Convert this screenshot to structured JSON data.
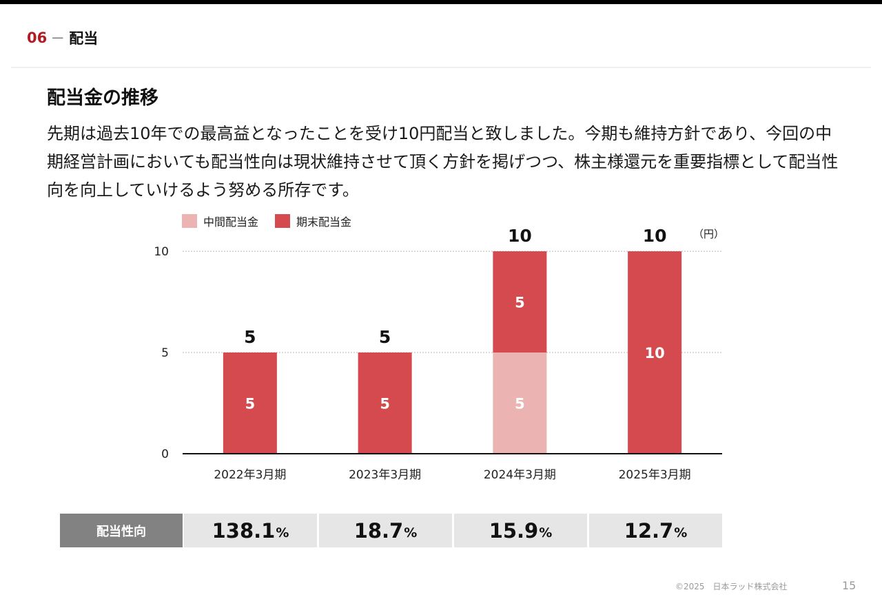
{
  "section": {
    "number": "06",
    "dash": "－",
    "title": "配当"
  },
  "page_title": "配当金の推移",
  "body_text": "先期は過去10年での最高益となったことを受け10円配当と致しました。今期も維持方針であり、今回の中期経営計画においても配当性向は現状維持させて頂く方針を掲げつつ、株主様還元を重要指標として配当性向を向上していけるよう努める所存です。",
  "legend": [
    {
      "label": "中間配当金",
      "color": "#ebb3b2"
    },
    {
      "label": "期末配当金",
      "color": "#d44a4e"
    }
  ],
  "unit": "（円）",
  "chart_data": {
    "type": "bar",
    "stacked": true,
    "categories": [
      "2022年3月期",
      "2023年3月期",
      "2024年3月期",
      "2025年3月期"
    ],
    "series": [
      {
        "name": "中間配当金",
        "color": "#ebb3b2",
        "values": [
          0,
          0,
          5,
          0
        ]
      },
      {
        "name": "期末配当金",
        "color": "#d44a4e",
        "values": [
          5,
          5,
          5,
          10
        ]
      }
    ],
    "totals": [
      5,
      5,
      10,
      10
    ],
    "ylim": [
      0,
      10
    ],
    "yticks": [
      0,
      5,
      10
    ],
    "grid": "dotted at y ticks",
    "legend_position": "top-left",
    "unit": "（円）"
  },
  "payout_ratio": {
    "label": "配当性向",
    "values": [
      "138.1",
      "18.7",
      "15.9",
      "12.7"
    ],
    "unit": "%"
  },
  "footer": {
    "copyright": "©2025　日本ラッド株式会社",
    "page": "15"
  }
}
